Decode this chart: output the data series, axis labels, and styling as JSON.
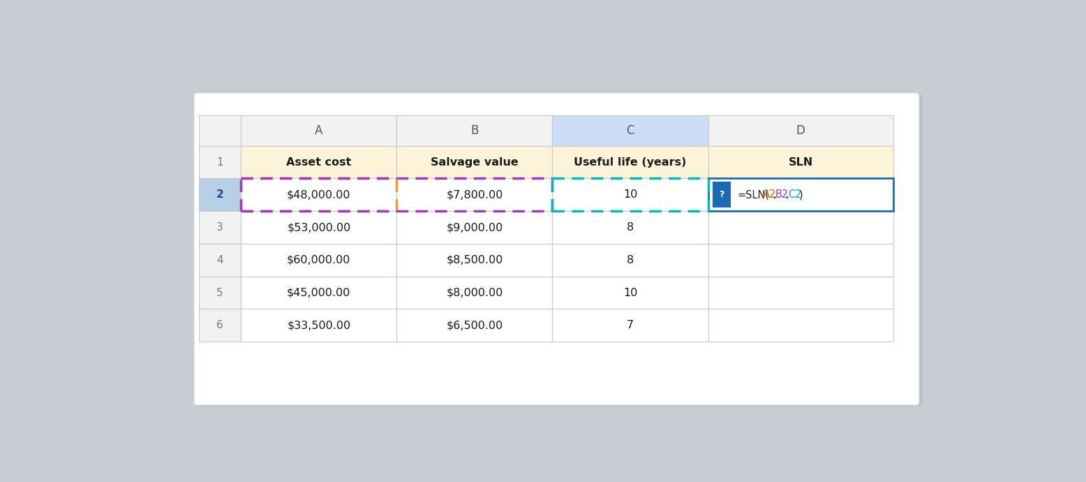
{
  "bg_color": "#c8cdd4",
  "sheet_bg": "#ffffff",
  "col_header_bg": "#f2f2f2",
  "col_header_highlight_bg": "#ccddf5",
  "row_header_bg": "#f2f2f2",
  "row_header_highlight_bg": "#b8cfe8",
  "header_row_bg": "#fdf3d8",
  "data_row_bg": "#ffffff",
  "grid_color": "#c8c8c8",
  "formula_cell_bg": "#ffffff",
  "formula_cell_border": "#1a6bb5",
  "col_letters": [
    "A",
    "B",
    "C",
    "D"
  ],
  "row_numbers": [
    "1",
    "2",
    "3",
    "4",
    "5",
    "6"
  ],
  "headers": [
    "Asset cost",
    "Salvage value",
    "Useful life (years)",
    "SLN"
  ],
  "data": [
    [
      "$48,000.00",
      "$7,800.00",
      "10",
      ""
    ],
    [
      "$53,000.00",
      "$9,000.00",
      "8",
      ""
    ],
    [
      "$60,000.00",
      "$8,500.00",
      "8",
      ""
    ],
    [
      "$45,000.00",
      "$8,000.00",
      "10",
      ""
    ],
    [
      "$33,500.00",
      "$6,500.00",
      "7",
      ""
    ]
  ],
  "orange_dash_color": "#f0973a",
  "purple_dash_color": "#9b3db8",
  "teal_dash_color": "#00b8c0",
  "blue_border_color": "#1a6bb5",
  "qmark_bg": "#1a6bb5",
  "formula_parts": [
    {
      "text": "=SLN(",
      "color": "#222222"
    },
    {
      "text": "A2",
      "color": "#d95f00"
    },
    {
      "text": ",",
      "color": "#222222"
    },
    {
      "text": "B2",
      "color": "#9b3db8"
    },
    {
      "text": ",",
      "color": "#222222"
    },
    {
      "text": "C2",
      "color": "#00a8a8"
    },
    {
      "text": ")",
      "color": "#222222"
    }
  ]
}
